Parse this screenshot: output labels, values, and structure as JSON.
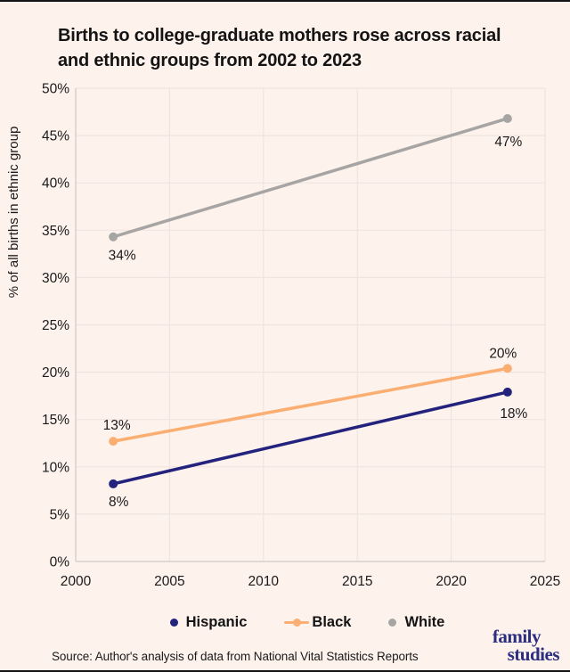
{
  "header": {
    "title_lines": [
      "Births to college-graduate mothers rose across racial",
      "and ethnic groups from 2002 to 2023"
    ]
  },
  "chart_data": {
    "type": "line",
    "title": "Births to college-graduate mothers rose across racial and ethnic groups from 2002 to 2023",
    "xlabel": "",
    "ylabel": "% of all births in ethnic group",
    "xlim": [
      2000,
      2025
    ],
    "ylim": [
      0,
      50
    ],
    "xticks": [
      2000,
      2005,
      2010,
      2015,
      2020,
      2025
    ],
    "yticks": [
      0,
      5,
      10,
      15,
      20,
      25,
      30,
      35,
      40,
      45,
      50
    ],
    "ytick_suffix": "%",
    "grid": true,
    "legend_position": "bottom",
    "series": [
      {
        "name": "Hispanic",
        "color": "#23237d",
        "legend_marker": "dot",
        "x": [
          2002,
          2023
        ],
        "y": [
          8.2,
          17.9
        ],
        "labels": [
          "8%",
          "18%"
        ],
        "label_dx": [
          6,
          7
        ],
        "label_dy": [
          25,
          29
        ]
      },
      {
        "name": "Black",
        "color": "#fbae72",
        "legend_marker": "line-dot",
        "x": [
          2002,
          2023
        ],
        "y": [
          12.7,
          20.4
        ],
        "labels": [
          "13%",
          "20%"
        ],
        "label_dx": [
          4,
          -5
        ],
        "label_dy": [
          -13,
          -12
        ]
      },
      {
        "name": "White",
        "color": "#a7a5a3",
        "legend_marker": "dot",
        "x": [
          2002,
          2023
        ],
        "y": [
          34.3,
          46.8
        ],
        "labels": [
          "34%",
          "47%"
        ],
        "label_dx": [
          10,
          1
        ],
        "label_dy": [
          26,
          31
        ]
      }
    ],
    "colors": {
      "background": "#fdf2ec",
      "gridline": "#efe5e0",
      "axis_line": "#d8d0cb",
      "text": "#1a1a1a",
      "title": "#141414",
      "logo": "#2b2d7e"
    }
  },
  "footer": {
    "source": "Source: Author's analysis of data from National Vital Statistics Reports",
    "logo_line1": "family",
    "logo_line2": "studies"
  }
}
